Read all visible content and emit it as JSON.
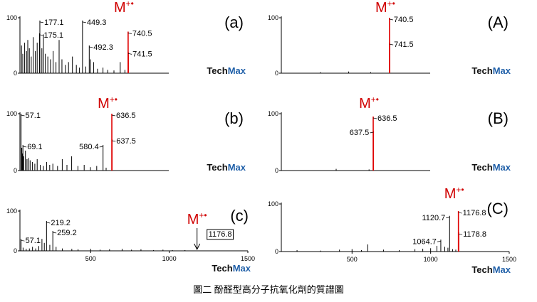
{
  "caption": "圖二 酚醛型高分子抗氧化劑的質譜圖",
  "watermark": {
    "part1": "Tech",
    "part2": "Max"
  },
  "ion_label": {
    "symbol": "M",
    "charge": "+•"
  },
  "chart_data": [
    {
      "type": "stem",
      "title": "(a)",
      "color": "#000000",
      "xlim": [
        50,
        1000
      ],
      "ylim": [
        0,
        100
      ],
      "yticks": [
        0,
        100
      ],
      "series": [
        {
          "color": "#000000",
          "x": [
            60,
            68,
            80,
            92,
            100,
            110,
            122,
            135,
            148,
            160,
            190,
            200,
            212,
            228,
            245,
            262,
            280,
            300,
            318,
            340,
            360,
            385,
            410,
            430,
            470,
            500,
            520,
            545,
            580,
            610,
            650,
            690,
            720
          ],
          "values": [
            50,
            35,
            55,
            40,
            60,
            45,
            30,
            65,
            40,
            55,
            45,
            70,
            35,
            30,
            25,
            40,
            20,
            60,
            25,
            15,
            20,
            30,
            15,
            10,
            12,
            25,
            20,
            8,
            10,
            6,
            5,
            20,
            6
          ]
        },
        {
          "color": "#000000",
          "labels": "right",
          "x": [
            175.1,
            177.1,
            449.3,
            492.3
          ],
          "values": [
            72,
            95,
            95,
            50
          ]
        },
        {
          "color": "#e00000",
          "labels": "right",
          "x": [
            740.5,
            741.5
          ],
          "values": [
            75,
            38
          ]
        }
      ]
    },
    {
      "type": "stem",
      "title": "(b)",
      "color": "#000000",
      "xlim": [
        50,
        1000
      ],
      "ylim": [
        0,
        100
      ],
      "yticks": [
        0,
        100
      ],
      "series": [
        {
          "color": "#000000",
          "x": [
            62,
            66,
            75,
            85,
            95,
            105,
            115,
            130,
            145,
            160,
            180,
            200,
            220,
            240,
            260,
            290,
            320,
            350,
            380,
            420,
            460,
            500,
            540,
            600
          ],
          "values": [
            40,
            30,
            25,
            35,
            20,
            22,
            18,
            15,
            12,
            20,
            10,
            8,
            15,
            10,
            12,
            8,
            20,
            10,
            25,
            8,
            10,
            6,
            8,
            5
          ]
        },
        {
          "color": "#000000",
          "labels": "right",
          "x": [
            57.1,
            69.1
          ],
          "values": [
            100,
            45
          ]
        },
        {
          "color": "#000000",
          "labels": "left",
          "x": [
            580.4
          ],
          "values": [
            45
          ]
        },
        {
          "color": "#e00000",
          "labels": "right",
          "x": [
            636.5,
            637.5
          ],
          "values": [
            100,
            55
          ]
        }
      ]
    },
    {
      "type": "stem",
      "title": "(c)",
      "color": "#000000",
      "xlim": [
        50,
        1500
      ],
      "ylim": [
        0,
        100
      ],
      "yticks": [
        0,
        100
      ],
      "xticks": [
        500,
        1000,
        1500
      ],
      "expected_ion": 1176.8,
      "series": [
        {
          "color": "#000000",
          "x": [
            70,
            90,
            110,
            130,
            150,
            170,
            190,
            205,
            240,
            280,
            320,
            380,
            420,
            500,
            560,
            620,
            700,
            760,
            820,
            900,
            960,
            1020,
            1100
          ],
          "values": [
            8,
            5,
            6,
            10,
            6,
            12,
            30,
            20,
            15,
            10,
            6,
            5,
            4,
            5,
            3,
            4,
            5,
            3,
            4,
            2,
            3,
            2,
            2
          ]
        },
        {
          "color": "#000000",
          "labels": "right",
          "x": [
            57.1,
            219.2,
            259.2
          ],
          "values": [
            30,
            75,
            50
          ]
        }
      ]
    },
    {
      "type": "stem",
      "title": "(A)",
      "color": "#000000",
      "xlim": [
        50,
        1000
      ],
      "ylim": [
        0,
        100
      ],
      "yticks": [
        0,
        100
      ],
      "series": [
        {
          "color": "#000000",
          "x": [
            300,
            480,
            620
          ],
          "values": [
            2,
            3,
            2
          ]
        },
        {
          "color": "#e00000",
          "labels": "right",
          "x": [
            740.5,
            741.5
          ],
          "values": [
            100,
            55
          ]
        }
      ]
    },
    {
      "type": "stem",
      "title": "(B)",
      "color": "#000000",
      "xlim": [
        50,
        1000
      ],
      "ylim": [
        0,
        100
      ],
      "yticks": [
        0,
        100
      ],
      "series": [
        {
          "color": "#000000",
          "x": [
            400,
            610
          ],
          "values": [
            3,
            2
          ]
        },
        {
          "color": "#e00000",
          "labels": "right",
          "x": [
            636.5
          ],
          "values": [
            95
          ]
        },
        {
          "color": "#e00000",
          "labels": "left",
          "x": [
            637.5
          ],
          "values": [
            70
          ]
        }
      ]
    },
    {
      "type": "stem",
      "title": "(C)",
      "color": "#000000",
      "xlim": [
        50,
        1500
      ],
      "ylim": [
        0,
        100
      ],
      "yticks": [
        0,
        100
      ],
      "xticks": [
        500,
        1000,
        1500
      ],
      "series": [
        {
          "color": "#000000",
          "x": [
            150,
            300,
            420,
            500,
            560,
            600,
            700,
            800,
            900,
            950,
            1000,
            1040,
            1090,
            1110,
            1140,
            1160
          ],
          "values": [
            3,
            2,
            4,
            5,
            3,
            15,
            4,
            3,
            5,
            6,
            7,
            12,
            10,
            8,
            5,
            4
          ]
        },
        {
          "color": "#000000",
          "labels": "left",
          "x": [
            1064.7,
            1120.7
          ],
          "values": [
            25,
            75
          ]
        },
        {
          "color": "#e00000",
          "labels": "right",
          "x": [
            1176.8,
            1178.8
          ],
          "values": [
            85,
            40
          ]
        }
      ]
    }
  ]
}
